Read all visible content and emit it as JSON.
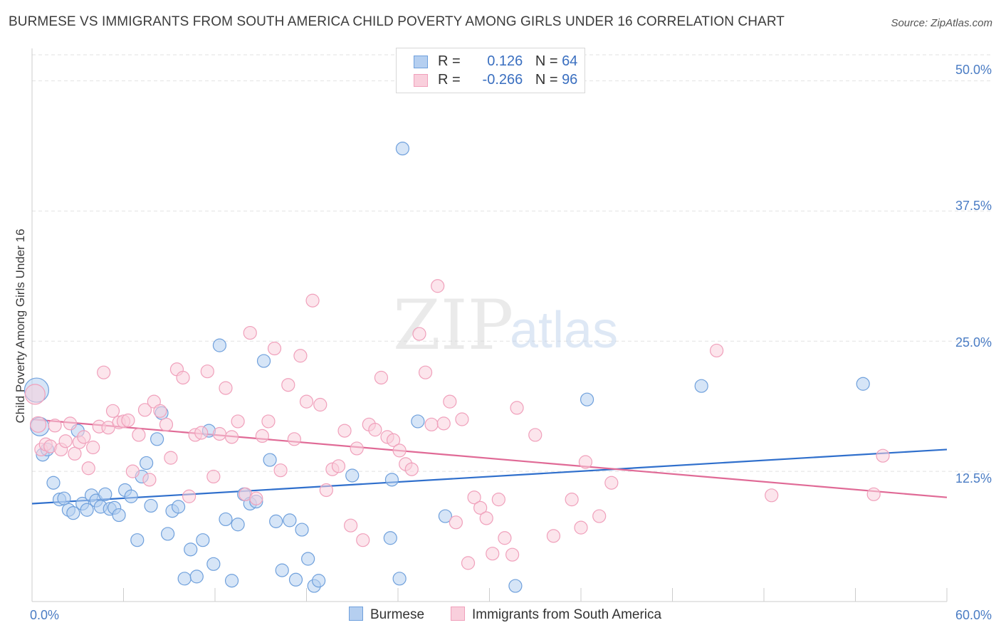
{
  "title": "BURMESE VS IMMIGRANTS FROM SOUTH AMERICA CHILD POVERTY AMONG GIRLS UNDER 16 CORRELATION CHART",
  "source": "Source: ZipAtlas.com",
  "watermark": {
    "zip": "ZIP",
    "atlas": "atlas"
  },
  "legend": {
    "rows": [
      {
        "r_label": "R =",
        "r_value": "0.126",
        "n_label": "N =",
        "n_value": "64",
        "color": "#6fa0dc"
      },
      {
        "r_label": "R =",
        "r_value": "-0.266",
        "n_label": "N =",
        "n_value": "96",
        "color": "#f0a0bb"
      }
    ]
  },
  "chart_data": {
    "type": "scatter",
    "title": "BURMESE VS IMMIGRANTS FROM SOUTH AMERICA CHILD POVERTY AMONG GIRLS UNDER 16 CORRELATION CHART",
    "xlabel": "",
    "ylabel": "Child Poverty Among Girls Under 16",
    "xlim": [
      0,
      60
    ],
    "ylim": [
      0,
      52.5
    ],
    "x_tick_labels": [
      "0.0%",
      "60.0%"
    ],
    "y_tick_labels": [
      "12.5%",
      "25.0%",
      "37.5%",
      "50.0%"
    ],
    "y_ticks": [
      12.5,
      25.0,
      37.5,
      50.0
    ],
    "grid": "horizontal dashed",
    "legend_position": "top-center",
    "series": [
      {
        "name": "Burmese",
        "color": "#6fa0dc",
        "fill": "#b5cff0",
        "trend": {
          "x": [
            0,
            60
          ],
          "y": [
            9.4,
            14.6
          ]
        },
        "points": [
          [
            0.3,
            20.3
          ],
          [
            0.5,
            16.8
          ],
          [
            0.7,
            14.1
          ],
          [
            1.0,
            14.6
          ],
          [
            1.4,
            11.4
          ],
          [
            1.8,
            9.8
          ],
          [
            2.1,
            9.9
          ],
          [
            2.4,
            8.8
          ],
          [
            2.7,
            8.5
          ],
          [
            3.0,
            16.4
          ],
          [
            3.3,
            9.4
          ],
          [
            3.6,
            8.8
          ],
          [
            3.9,
            10.2
          ],
          [
            4.2,
            9.7
          ],
          [
            4.5,
            9.1
          ],
          [
            4.8,
            10.3
          ],
          [
            5.1,
            8.9
          ],
          [
            5.4,
            9.0
          ],
          [
            5.7,
            8.3
          ],
          [
            6.1,
            10.7
          ],
          [
            6.5,
            10.1
          ],
          [
            6.9,
            5.9
          ],
          [
            7.2,
            12.0
          ],
          [
            7.5,
            13.3
          ],
          [
            7.8,
            9.2
          ],
          [
            8.2,
            15.6
          ],
          [
            8.5,
            18.1
          ],
          [
            8.9,
            6.5
          ],
          [
            9.2,
            8.7
          ],
          [
            9.6,
            9.1
          ],
          [
            10.0,
            2.2
          ],
          [
            10.4,
            5.0
          ],
          [
            10.8,
            2.4
          ],
          [
            11.2,
            5.9
          ],
          [
            11.6,
            16.4
          ],
          [
            11.9,
            3.6
          ],
          [
            12.3,
            24.6
          ],
          [
            12.7,
            7.9
          ],
          [
            13.1,
            2.0
          ],
          [
            13.5,
            7.4
          ],
          [
            13.9,
            10.3
          ],
          [
            14.3,
            9.4
          ],
          [
            14.7,
            9.6
          ],
          [
            15.2,
            23.1
          ],
          [
            15.6,
            13.6
          ],
          [
            16.0,
            7.7
          ],
          [
            16.4,
            3.0
          ],
          [
            16.9,
            7.8
          ],
          [
            17.3,
            2.1
          ],
          [
            17.7,
            6.9
          ],
          [
            18.1,
            4.1
          ],
          [
            18.5,
            1.5
          ],
          [
            18.8,
            2.0
          ],
          [
            21.0,
            12.1
          ],
          [
            23.5,
            6.1
          ],
          [
            23.6,
            11.7
          ],
          [
            24.1,
            2.2
          ],
          [
            24.3,
            43.5
          ],
          [
            25.3,
            17.3
          ],
          [
            27.1,
            8.2
          ],
          [
            31.7,
            1.5
          ],
          [
            36.4,
            19.4
          ],
          [
            43.9,
            20.7
          ],
          [
            54.5,
            20.9
          ]
        ],
        "sizes": {
          "0": 34,
          "1": 26
        }
      },
      {
        "name": "Immigrants from South America",
        "color": "#f0a0bb",
        "fill": "#f9cfdc",
        "trend": {
          "x": [
            0,
            60
          ],
          "y": [
            17.5,
            10.0
          ]
        },
        "points": [
          [
            0.2,
            19.9
          ],
          [
            0.4,
            17.0
          ],
          [
            0.6,
            14.6
          ],
          [
            0.9,
            15.1
          ],
          [
            1.2,
            14.9
          ],
          [
            1.5,
            16.9
          ],
          [
            1.9,
            14.6
          ],
          [
            2.2,
            15.4
          ],
          [
            2.5,
            17.1
          ],
          [
            2.8,
            14.2
          ],
          [
            3.1,
            15.3
          ],
          [
            3.4,
            15.8
          ],
          [
            3.7,
            12.8
          ],
          [
            4.0,
            14.8
          ],
          [
            4.4,
            16.8
          ],
          [
            4.7,
            22.0
          ],
          [
            5.0,
            16.7
          ],
          [
            5.3,
            18.3
          ],
          [
            5.7,
            17.2
          ],
          [
            6.0,
            17.3
          ],
          [
            6.3,
            17.4
          ],
          [
            6.6,
            12.5
          ],
          [
            7.0,
            16.0
          ],
          [
            7.4,
            18.4
          ],
          [
            7.7,
            11.7
          ],
          [
            8.0,
            19.2
          ],
          [
            8.4,
            18.3
          ],
          [
            8.8,
            17.0
          ],
          [
            9.1,
            13.8
          ],
          [
            9.5,
            22.3
          ],
          [
            9.9,
            21.5
          ],
          [
            10.3,
            10.1
          ],
          [
            10.7,
            16.0
          ],
          [
            11.1,
            16.2
          ],
          [
            11.5,
            22.1
          ],
          [
            11.9,
            12.0
          ],
          [
            12.3,
            16.1
          ],
          [
            12.7,
            20.5
          ],
          [
            13.1,
            15.8
          ],
          [
            13.5,
            17.3
          ],
          [
            14.0,
            10.3
          ],
          [
            14.3,
            25.8
          ],
          [
            14.7,
            9.9
          ],
          [
            15.1,
            15.9
          ],
          [
            15.5,
            17.3
          ],
          [
            15.9,
            24.3
          ],
          [
            16.3,
            12.6
          ],
          [
            16.8,
            20.8
          ],
          [
            17.2,
            15.6
          ],
          [
            17.6,
            23.6
          ],
          [
            18.0,
            19.2
          ],
          [
            18.4,
            28.9
          ],
          [
            18.9,
            18.9
          ],
          [
            19.3,
            10.7
          ],
          [
            19.7,
            12.7
          ],
          [
            20.1,
            13.0
          ],
          [
            20.5,
            16.4
          ],
          [
            20.9,
            7.3
          ],
          [
            21.3,
            14.7
          ],
          [
            21.7,
            5.9
          ],
          [
            22.1,
            17.0
          ],
          [
            22.5,
            16.5
          ],
          [
            22.9,
            21.5
          ],
          [
            23.3,
            15.8
          ],
          [
            23.7,
            15.5
          ],
          [
            24.1,
            14.5
          ],
          [
            24.5,
            13.2
          ],
          [
            24.9,
            12.7
          ],
          [
            25.4,
            25.7
          ],
          [
            25.8,
            22.0
          ],
          [
            26.2,
            17.0
          ],
          [
            26.6,
            30.3
          ],
          [
            27.0,
            17.1
          ],
          [
            27.4,
            19.2
          ],
          [
            27.8,
            7.6
          ],
          [
            28.2,
            17.5
          ],
          [
            28.6,
            3.7
          ],
          [
            29.0,
            10.0
          ],
          [
            29.4,
            9.0
          ],
          [
            29.8,
            8.0
          ],
          [
            30.2,
            4.6
          ],
          [
            30.6,
            9.8
          ],
          [
            31.0,
            6.1
          ],
          [
            31.5,
            4.5
          ],
          [
            33.0,
            16.0
          ],
          [
            34.2,
            6.3
          ],
          [
            35.4,
            9.8
          ],
          [
            36.0,
            7.1
          ],
          [
            36.3,
            13.4
          ],
          [
            37.2,
            8.2
          ],
          [
            38.0,
            11.4
          ],
          [
            44.9,
            24.1
          ],
          [
            48.5,
            10.2
          ],
          [
            55.2,
            10.3
          ],
          [
            55.8,
            14.0
          ],
          [
            31.8,
            18.6
          ]
        ],
        "sizes": {
          "0": 28,
          "1": 22,
          "2": 18
        }
      }
    ]
  },
  "bottom_legend": [
    {
      "label": "Burmese",
      "color": "#6fa0dc",
      "fill": "#b5cff0"
    },
    {
      "label": "Immigrants from South America",
      "color": "#f0a0bb",
      "fill": "#f9cfdc"
    }
  ]
}
